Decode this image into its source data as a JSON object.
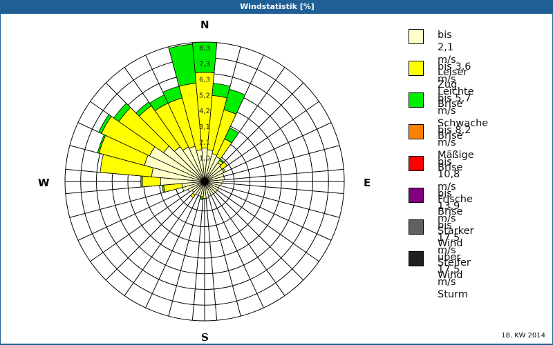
{
  "title": "Windstatistik [%]",
  "footer": "18. KW 2014",
  "compass": {
    "n": "N",
    "e": "E",
    "s": "S",
    "w": "W"
  },
  "legend": [
    {
      "range": "bis 2,1 m/s",
      "name": "Leiser Zug",
      "color": "#ffffc8"
    },
    {
      "range": "bis 3,6 m/s",
      "name": "Leichte Brise",
      "color": "#ffff00"
    },
    {
      "range": "bis 5,7 m/s",
      "name": "Schwache Brise",
      "color": "#00ee00"
    },
    {
      "range": "bis 8,2 m/s",
      "name": "Mäßige Brise",
      "color": "#ff8000"
    },
    {
      "range": "bis 10,8 m/s",
      "name": "Frische Brise",
      "color": "#ff0000"
    },
    {
      "range": "bis 13,9 m/s",
      "name": "Starker Wind",
      "color": "#800080"
    },
    {
      "range": "bis 17,5 m/s",
      "name": "Steifer Wind",
      "color": "#606060"
    },
    {
      "range": "über 17,5 m/s",
      "name": "Sturm",
      "color": "#202020"
    }
  ],
  "chart_data": {
    "type": "wind-rose",
    "title": "Windstatistik [%]",
    "subtitle": "18. KW 2014",
    "radial_ticks": [
      "1,0",
      "2,1",
      "3,1",
      "4,2",
      "5,2",
      "6,3",
      "7,3",
      "8,3"
    ],
    "radial_max": 8.3,
    "sector_width_deg": 10,
    "series_note": "values are cumulative % per direction sector (angle clockwise from N)",
    "series": [
      {
        "name": "bis 2,1 m/s Leiser Zug",
        "color": "#ffffc8"
      },
      {
        "name": "bis 3,6 m/s Leichte Brise",
        "color": "#ffff00"
      },
      {
        "name": "bis 5,7 m/s Schwache Brise",
        "color": "#00ee00"
      }
    ],
    "sectors": [
      {
        "angle": 0,
        "cum": [
          1.3,
          6.3,
          8.3
        ]
      },
      {
        "angle": 10,
        "cum": [
          1.2,
          4.8,
          5.6
        ]
      },
      {
        "angle": 20,
        "cum": [
          1.0,
          4.0,
          5.4
        ]
      },
      {
        "angle": 30,
        "cum": [
          0.9,
          2.2,
          3.0
        ]
      },
      {
        "angle": 40,
        "cum": [
          0.6,
          0.8,
          0.9
        ]
      },
      {
        "angle": 50,
        "cum": [
          0.5,
          0.9,
          0.9
        ]
      },
      {
        "angle": 60,
        "cum": [
          0.5,
          0.6,
          0.6
        ]
      },
      {
        "angle": 70,
        "cum": [
          0.4,
          0.4,
          0.4
        ]
      },
      {
        "angle": 80,
        "cum": [
          0.4,
          0.4,
          0.4
        ]
      },
      {
        "angle": 90,
        "cum": [
          0.3,
          0.3,
          0.3
        ]
      },
      {
        "angle": 100,
        "cum": [
          0.2,
          0.2,
          0.2
        ]
      },
      {
        "angle": 110,
        "cum": [
          0.1,
          0.1,
          0.1
        ]
      },
      {
        "angle": 120,
        "cum": [
          0.1,
          0.1,
          0.1
        ]
      },
      {
        "angle": 130,
        "cum": [
          0.1,
          0.1,
          0.1
        ]
      },
      {
        "angle": 140,
        "cum": [
          0.1,
          0.1,
          0.1
        ]
      },
      {
        "angle": 150,
        "cum": [
          0.1,
          0.1,
          0.1
        ]
      },
      {
        "angle": 160,
        "cum": [
          0.1,
          0.1,
          0.1
        ]
      },
      {
        "angle": 170,
        "cum": [
          0.2,
          0.2,
          0.2
        ]
      },
      {
        "angle": 180,
        "cum": [
          0.2,
          0.2,
          0.2
        ]
      },
      {
        "angle": 190,
        "cum": [
          0.1,
          0.2,
          0.3
        ]
      },
      {
        "angle": 200,
        "cum": [
          0.1,
          0.1,
          0.1
        ]
      },
      {
        "angle": 210,
        "cum": [
          0.1,
          0.1,
          0.1
        ]
      },
      {
        "angle": 220,
        "cum": [
          0.2,
          0.4,
          0.4
        ]
      },
      {
        "angle": 230,
        "cum": [
          0.1,
          0.1,
          0.1
        ]
      },
      {
        "angle": 240,
        "cum": [
          0.3,
          0.3,
          0.3
        ]
      },
      {
        "angle": 250,
        "cum": [
          0.6,
          0.6,
          0.6
        ]
      },
      {
        "angle": 260,
        "cum": [
          0.6,
          1.8,
          1.9
        ]
      },
      {
        "angle": 270,
        "cum": [
          2.0,
          3.2,
          3.3
        ]
      },
      {
        "angle": 280,
        "cum": [
          2.6,
          6.0,
          6.0
        ]
      },
      {
        "angle": 290,
        "cum": [
          3.2,
          6.3,
          6.4
        ]
      },
      {
        "angle": 300,
        "cum": [
          3.1,
          6.6,
          6.8
        ]
      },
      {
        "angle": 310,
        "cum": [
          2.4,
          6.0,
          6.4
        ]
      },
      {
        "angle": 320,
        "cum": [
          1.9,
          5.2,
          5.5
        ]
      },
      {
        "angle": 330,
        "cum": [
          1.6,
          4.8,
          5.4
        ]
      },
      {
        "angle": 340,
        "cum": [
          1.5,
          4.8,
          5.6
        ]
      },
      {
        "angle": 350,
        "cum": [
          1.2,
          5.6,
          8.2
        ]
      }
    ]
  }
}
